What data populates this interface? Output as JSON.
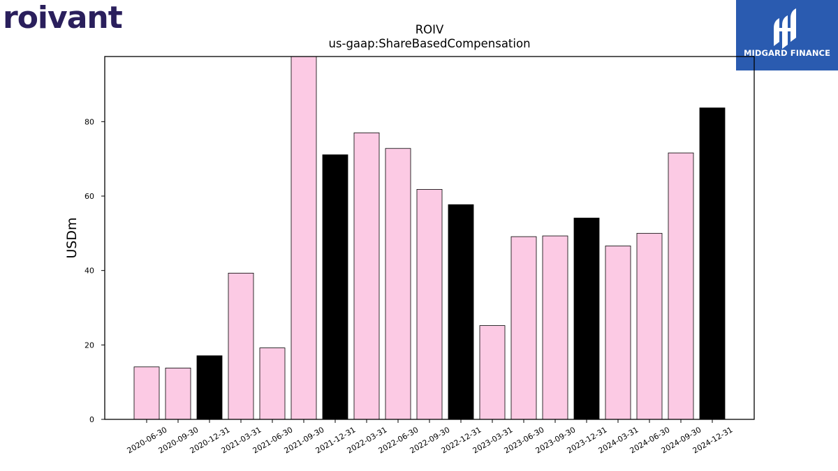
{
  "logo": {
    "text": "roivant",
    "color": "#2a1f5c"
  },
  "badge": {
    "text": "MIDGARD FINANCE",
    "background": "#2a5bb0"
  },
  "chart_data": {
    "type": "bar",
    "title": "ROIV",
    "subtitle": "us-gaap:ShareBasedCompensation",
    "ylabel": "USDm",
    "xlabel": "",
    "ylim": [
      0,
      97.5
    ],
    "yticks": [
      0,
      20,
      40,
      60,
      80
    ],
    "grid": false,
    "categories": [
      "2020-06-30",
      "2020-09-30",
      "2020-12-31",
      "2021-03-31",
      "2021-06-30",
      "2021-09-30",
      "2021-12-31",
      "2022-03-31",
      "2022-06-30",
      "2022-09-30",
      "2022-12-31",
      "2023-03-31",
      "2023-06-30",
      "2023-09-30",
      "2023-12-31",
      "2024-03-31",
      "2024-06-30",
      "2024-09-30",
      "2024-12-31"
    ],
    "values": [
      14.1,
      13.8,
      17.1,
      39.3,
      19.2,
      97.8,
      71.1,
      77.0,
      72.8,
      61.8,
      57.7,
      25.2,
      49.1,
      49.3,
      54.1,
      46.6,
      50.0,
      71.6,
      83.7
    ],
    "colors": {
      "quarter": "#fccae4",
      "year_end": "#000000"
    },
    "highlight": [
      false,
      false,
      true,
      false,
      false,
      false,
      true,
      false,
      false,
      false,
      true,
      false,
      false,
      false,
      true,
      false,
      false,
      false,
      true
    ]
  }
}
